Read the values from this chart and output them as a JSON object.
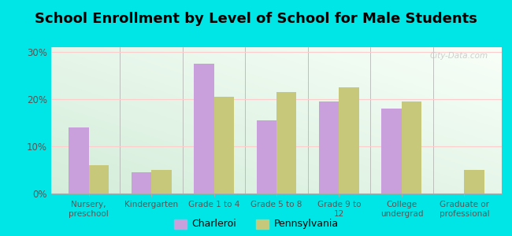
{
  "title": "School Enrollment by Level of School for Male Students",
  "categories": [
    "Nursery,\npreschool",
    "Kindergarten",
    "Grade 1 to 4",
    "Grade 5 to 8",
    "Grade 9 to\n12",
    "College\nundergrad",
    "Graduate or\nprofessional"
  ],
  "charleroi": [
    14.0,
    4.5,
    27.5,
    15.5,
    19.5,
    18.0,
    0.0
  ],
  "pennsylvania": [
    6.0,
    5.0,
    20.5,
    21.5,
    22.5,
    19.5,
    5.0
  ],
  "charleroi_color": "#c9a0dc",
  "pennsylvania_color": "#c8c87a",
  "background_outer": "#00e5e5",
  "background_inner_bottom_left": "#d4edda",
  "background_inner_top_right": "#f8fff8",
  "ylabel_ticks": [
    "0%",
    "10%",
    "20%",
    "30%"
  ],
  "yticks": [
    0,
    10,
    20,
    30
  ],
  "ylim": [
    0,
    31
  ],
  "title_fontsize": 13,
  "bar_width": 0.32,
  "legend_labels": [
    "Charleroi",
    "Pennsylvania"
  ],
  "watermark": "City-Data.com"
}
